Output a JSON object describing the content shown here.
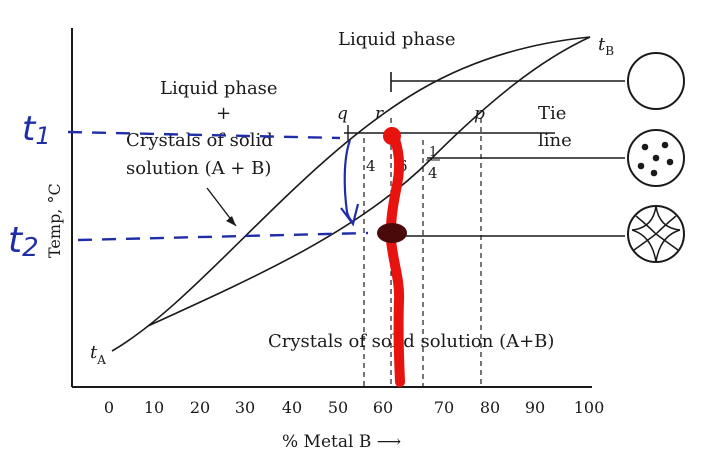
{
  "diagram": {
    "y_axis_label": "Temp, °C",
    "x_axis_label": "% Metal B ⟶",
    "x_ticks": [
      "0",
      "10",
      "20",
      "30",
      "40",
      "50",
      "60",
      "70",
      "80",
      "90",
      "100"
    ],
    "region_liquid": "Liquid phase",
    "region_mixed_line1": "Liquid phase",
    "region_mixed_line2": "+",
    "region_mixed_line3": "Crystals of solid",
    "region_mixed_line4": "solution (A + B)",
    "region_solid": "Crystals of solid solution (A+B)",
    "tie_line_label_1": "Tie",
    "tie_line_label_2": "line",
    "point_q": "q",
    "point_r": "r",
    "point_p": "p",
    "end_ta": "t",
    "end_ta_sub": "A",
    "end_tb": "t",
    "end_tb_sub": "B",
    "frac_left": "4",
    "frac_mid": "6",
    "frac_right_num": "1",
    "frac_right_den": "4"
  },
  "annotations": {
    "t1_label": "t",
    "t1_sub": "1",
    "t2_label": "t",
    "t2_sub": "2"
  },
  "colors": {
    "ink": "#1a1a1a",
    "pen_blue": "#1f2ea8",
    "marker_red": "#e8130f",
    "marker_dark": "#4a0a0a"
  },
  "icons": [
    "liquid-circle-icon",
    "nuclei-circle-icon",
    "grain-circle-icon"
  ]
}
